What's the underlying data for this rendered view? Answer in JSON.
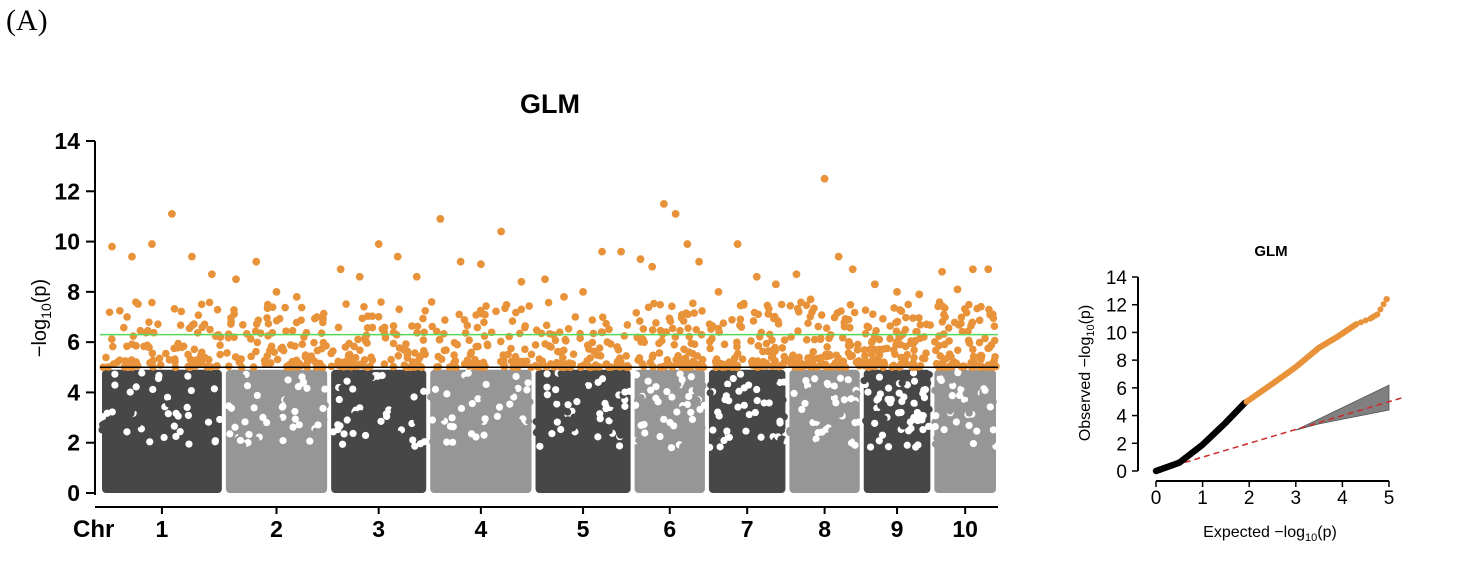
{
  "panel_label": "(A)",
  "colors": {
    "dark": "#474747",
    "light": "#969696",
    "sig": "#E8923A",
    "green_line": "#57D957",
    "black_line": "#000000",
    "qq_diag": "#CC2B2B",
    "ci": "#808080"
  },
  "chart_data": [
    {
      "type": "scatter",
      "subtype": "manhattan",
      "title": "GLM",
      "ylabel_prefix": "−log",
      "ylabel_sub": "10",
      "ylabel_suffix": "(p)",
      "xlabel_prefix": "Chr",
      "ylim": [
        0,
        14
      ],
      "yticks": [
        0,
        2,
        4,
        6,
        8,
        10,
        12,
        14
      ],
      "threshold_green": 6.3,
      "threshold_black": 5.0,
      "chromosomes": [
        {
          "label": "1",
          "start": 0.0,
          "end": 1.0,
          "shade": "dark",
          "top_hits": [
            9.8,
            9.4,
            9.9,
            11.1,
            9.4,
            8.7
          ]
        },
        {
          "label": "2",
          "start": 1.0,
          "end": 1.85,
          "shade": "light",
          "top_hits": [
            8.5,
            9.2,
            8.0,
            7.8,
            7.0
          ]
        },
        {
          "label": "3",
          "start": 1.85,
          "end": 2.65,
          "shade": "dark",
          "top_hits": [
            8.9,
            8.6,
            9.9,
            9.4,
            8.6
          ]
        },
        {
          "label": "4",
          "start": 2.65,
          "end": 3.5,
          "shade": "light",
          "top_hits": [
            10.9,
            9.2,
            9.1,
            10.4,
            8.4
          ]
        },
        {
          "label": "5",
          "start": 3.5,
          "end": 4.3,
          "shade": "dark",
          "top_hits": [
            8.5,
            7.8,
            8.0,
            9.6,
            9.6
          ]
        },
        {
          "label": "6",
          "start": 4.3,
          "end": 4.9,
          "shade": "light",
          "top_hits": [
            9.3,
            9.0,
            11.5,
            11.1,
            9.9,
            9.2
          ]
        },
        {
          "label": "7",
          "start": 4.9,
          "end": 5.55,
          "shade": "dark",
          "top_hits": [
            8.0,
            9.9,
            8.6,
            8.3
          ]
        },
        {
          "label": "8",
          "start": 5.55,
          "end": 6.15,
          "shade": "light",
          "top_hits": [
            8.7,
            7.7,
            12.5,
            9.4,
            8.9
          ]
        },
        {
          "label": "9",
          "start": 6.15,
          "end": 6.72,
          "shade": "dark",
          "top_hits": [
            8.3,
            8.0,
            7.9
          ]
        },
        {
          "label": "10",
          "start": 6.72,
          "end": 7.25,
          "shade": "light",
          "top_hits": [
            8.8,
            8.1,
            8.9,
            8.9
          ]
        }
      ]
    },
    {
      "type": "scatter",
      "subtype": "qq",
      "title": "GLM",
      "xlabel_prefix": "Expected −log",
      "xlabel_sub": "10",
      "xlabel_suffix": "(p)",
      "ylabel_prefix": "Observed −log",
      "ylabel_sub": "10",
      "ylabel_suffix": "(p)",
      "xlim": [
        0,
        5
      ],
      "ylim": [
        0,
        14
      ],
      "xticks": [
        0,
        1,
        2,
        3,
        4,
        5
      ],
      "yticks": [
        0,
        2,
        4,
        6,
        8,
        10,
        12,
        14
      ],
      "sig_threshold": 5.0,
      "curve": [
        [
          0,
          0
        ],
        [
          0.5,
          0.6
        ],
        [
          1.0,
          1.9
        ],
        [
          1.5,
          3.5
        ],
        [
          1.9,
          4.9
        ],
        [
          2.5,
          6.3
        ],
        [
          3.0,
          7.5
        ],
        [
          3.5,
          8.9
        ],
        [
          3.9,
          9.7
        ],
        [
          4.3,
          10.6
        ],
        [
          4.6,
          11.0
        ],
        [
          4.75,
          11.3
        ],
        [
          4.95,
          12.4
        ]
      ]
    }
  ]
}
